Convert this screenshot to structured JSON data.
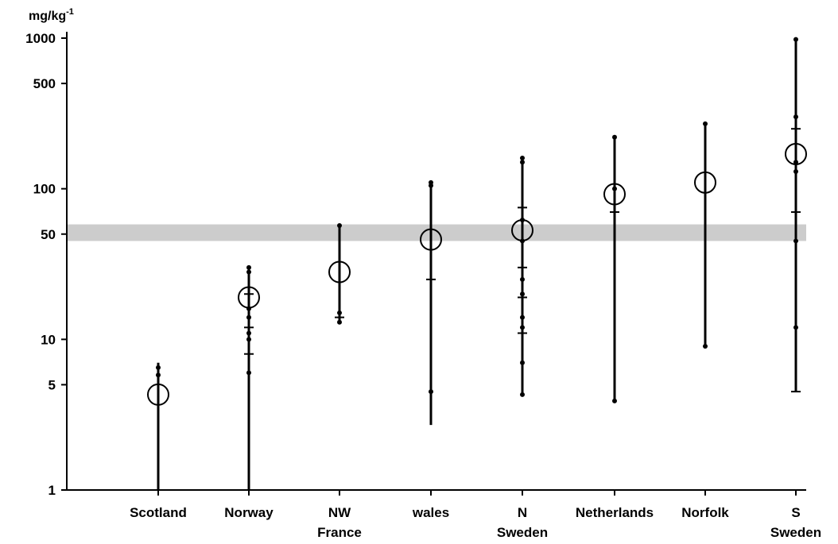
{
  "chart_data": {
    "type": "scatter",
    "ylabel": "mg/kg",
    "ylabel_superscript": "-1",
    "yscale": "log",
    "ylim": [
      1,
      1000
    ],
    "yticks": [
      {
        "value": 1,
        "label": "1"
      },
      {
        "value": 5,
        "label": "5"
      },
      {
        "value": 10,
        "label": "10"
      },
      {
        "value": 50,
        "label": "50"
      },
      {
        "value": 100,
        "label": "100"
      },
      {
        "value": 500,
        "label": "500"
      },
      {
        "value": 1000,
        "label": "1000"
      }
    ],
    "reference_band": {
      "low": 45,
      "high": 58,
      "color": "#cccccc"
    },
    "categories": [
      {
        "label": [
          "Scotland"
        ],
        "min": 1,
        "max": 7,
        "mean": 4.3,
        "points": [
          6.5,
          5.8
        ]
      },
      {
        "label": [
          "Norway"
        ],
        "min": 1,
        "max": 30,
        "mean": 19,
        "points": [
          30,
          28,
          20,
          16,
          14,
          12,
          11,
          10,
          8,
          6
        ]
      },
      {
        "label": [
          "NW",
          "France"
        ],
        "min": 13,
        "max": 57,
        "mean": 28,
        "points": [
          57,
          15,
          14,
          13
        ]
      },
      {
        "label": [
          "wales"
        ],
        "min": 2.7,
        "max": 110,
        "mean": 46,
        "points": [
          110,
          105,
          25,
          4.5
        ]
      },
      {
        "label": [
          "N",
          "Sweden"
        ],
        "min": 4.3,
        "max": 160,
        "mean": 53,
        "points": [
          160,
          150,
          75,
          62,
          45,
          30,
          25,
          20,
          19,
          14,
          12,
          11,
          7,
          4.3
        ]
      },
      {
        "label": [
          "Netherlands"
        ],
        "min": 3.9,
        "max": 220,
        "mean": 92,
        "points": [
          220,
          100,
          70,
          3.9
        ]
      },
      {
        "label": [
          "Norfolk"
        ],
        "min": 9,
        "max": 270,
        "mean": 110,
        "points": [
          270,
          9
        ]
      },
      {
        "label": [
          "S",
          "Sweden"
        ],
        "min": 4.5,
        "max": 980,
        "mean": 170,
        "points": [
          980,
          300,
          250,
          150,
          130,
          70,
          45,
          12,
          4.5
        ]
      }
    ]
  }
}
